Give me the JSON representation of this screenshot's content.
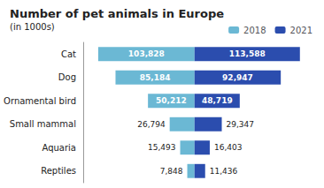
{
  "chart_data": {
    "type": "bar",
    "orientation": "horizontal",
    "title": "Number of pet animals in Europe",
    "subtitle": "(in 1000s)",
    "categories": [
      "Cat",
      "Dog",
      "Ornamental bird",
      "Small mammal",
      "Aquaria",
      "Reptiles"
    ],
    "series": [
      {
        "name": "2018",
        "color": "#6BB8D4",
        "values": [
          103828,
          85184,
          50212,
          26794,
          15493,
          7848
        ],
        "value_labels": [
          "103,828",
          "85,184",
          "50,212",
          "26,794",
          "15,493",
          "7,848"
        ]
      },
      {
        "name": "2021",
        "color": "#2B4DAE",
        "values": [
          113588,
          92947,
          48719,
          29347,
          16403,
          11436
        ],
        "value_labels": [
          "113,588",
          "92,947",
          "48,719",
          "29,347",
          "16,403",
          "11,436"
        ]
      }
    ],
    "xlim": [
      -120000,
      130000
    ],
    "data_labels": true,
    "tick_labels": "y",
    "grid": false,
    "legend": "upper right"
  }
}
